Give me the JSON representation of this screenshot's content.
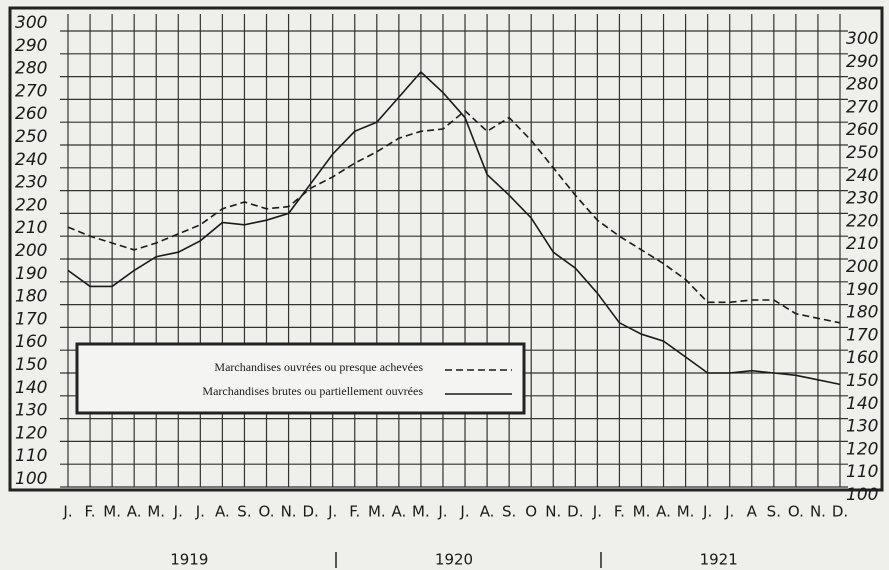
{
  "chart_data": {
    "type": "line",
    "categories": [
      "J.",
      "F.",
      "M.",
      "A.",
      "M.",
      "J.",
      "J.",
      "A.",
      "S.",
      "O.",
      "N.",
      "D.",
      "J.",
      "F.",
      "M.",
      "A.",
      "M.",
      "J.",
      "J.",
      "A.",
      "S.",
      "O",
      "N.",
      "D.",
      "J.",
      "F.",
      "M.",
      "A.",
      "M.",
      "J.",
      "J.",
      "A",
      "S.",
      "O.",
      "N.",
      "D."
    ],
    "year_labels": [
      "1919",
      "1920",
      "1921"
    ],
    "series": [
      {
        "name": "Marchandises ouvrées ou presque achevées",
        "color": "#1a1a1a",
        "dashed": true,
        "values": [
          214,
          210,
          207,
          204,
          207,
          211,
          215,
          222,
          225,
          222,
          223,
          231,
          236,
          242,
          247,
          253,
          256,
          257,
          265,
          256,
          262,
          252,
          240,
          228,
          217,
          210,
          204,
          198,
          191,
          181,
          181,
          182,
          182,
          176,
          174,
          172
        ]
      },
      {
        "name": "Marchandises brutes ou partiellement ouvrées",
        "color": "#1a1a1a",
        "dashed": false,
        "values": [
          195,
          188,
          188,
          195,
          201,
          203,
          208,
          216,
          215,
          217,
          220,
          233,
          246,
          256,
          260,
          271,
          282,
          273,
          262,
          237,
          228,
          218,
          203,
          196,
          185,
          172,
          167,
          164,
          157,
          150,
          150,
          151,
          150,
          149,
          147,
          145
        ]
      }
    ],
    "ylim": [
      100,
      300
    ],
    "yticks": [
      100,
      110,
      120,
      130,
      140,
      150,
      160,
      170,
      180,
      190,
      200,
      210,
      220,
      230,
      240,
      250,
      260,
      270,
      280,
      290,
      300
    ],
    "grid": true
  }
}
